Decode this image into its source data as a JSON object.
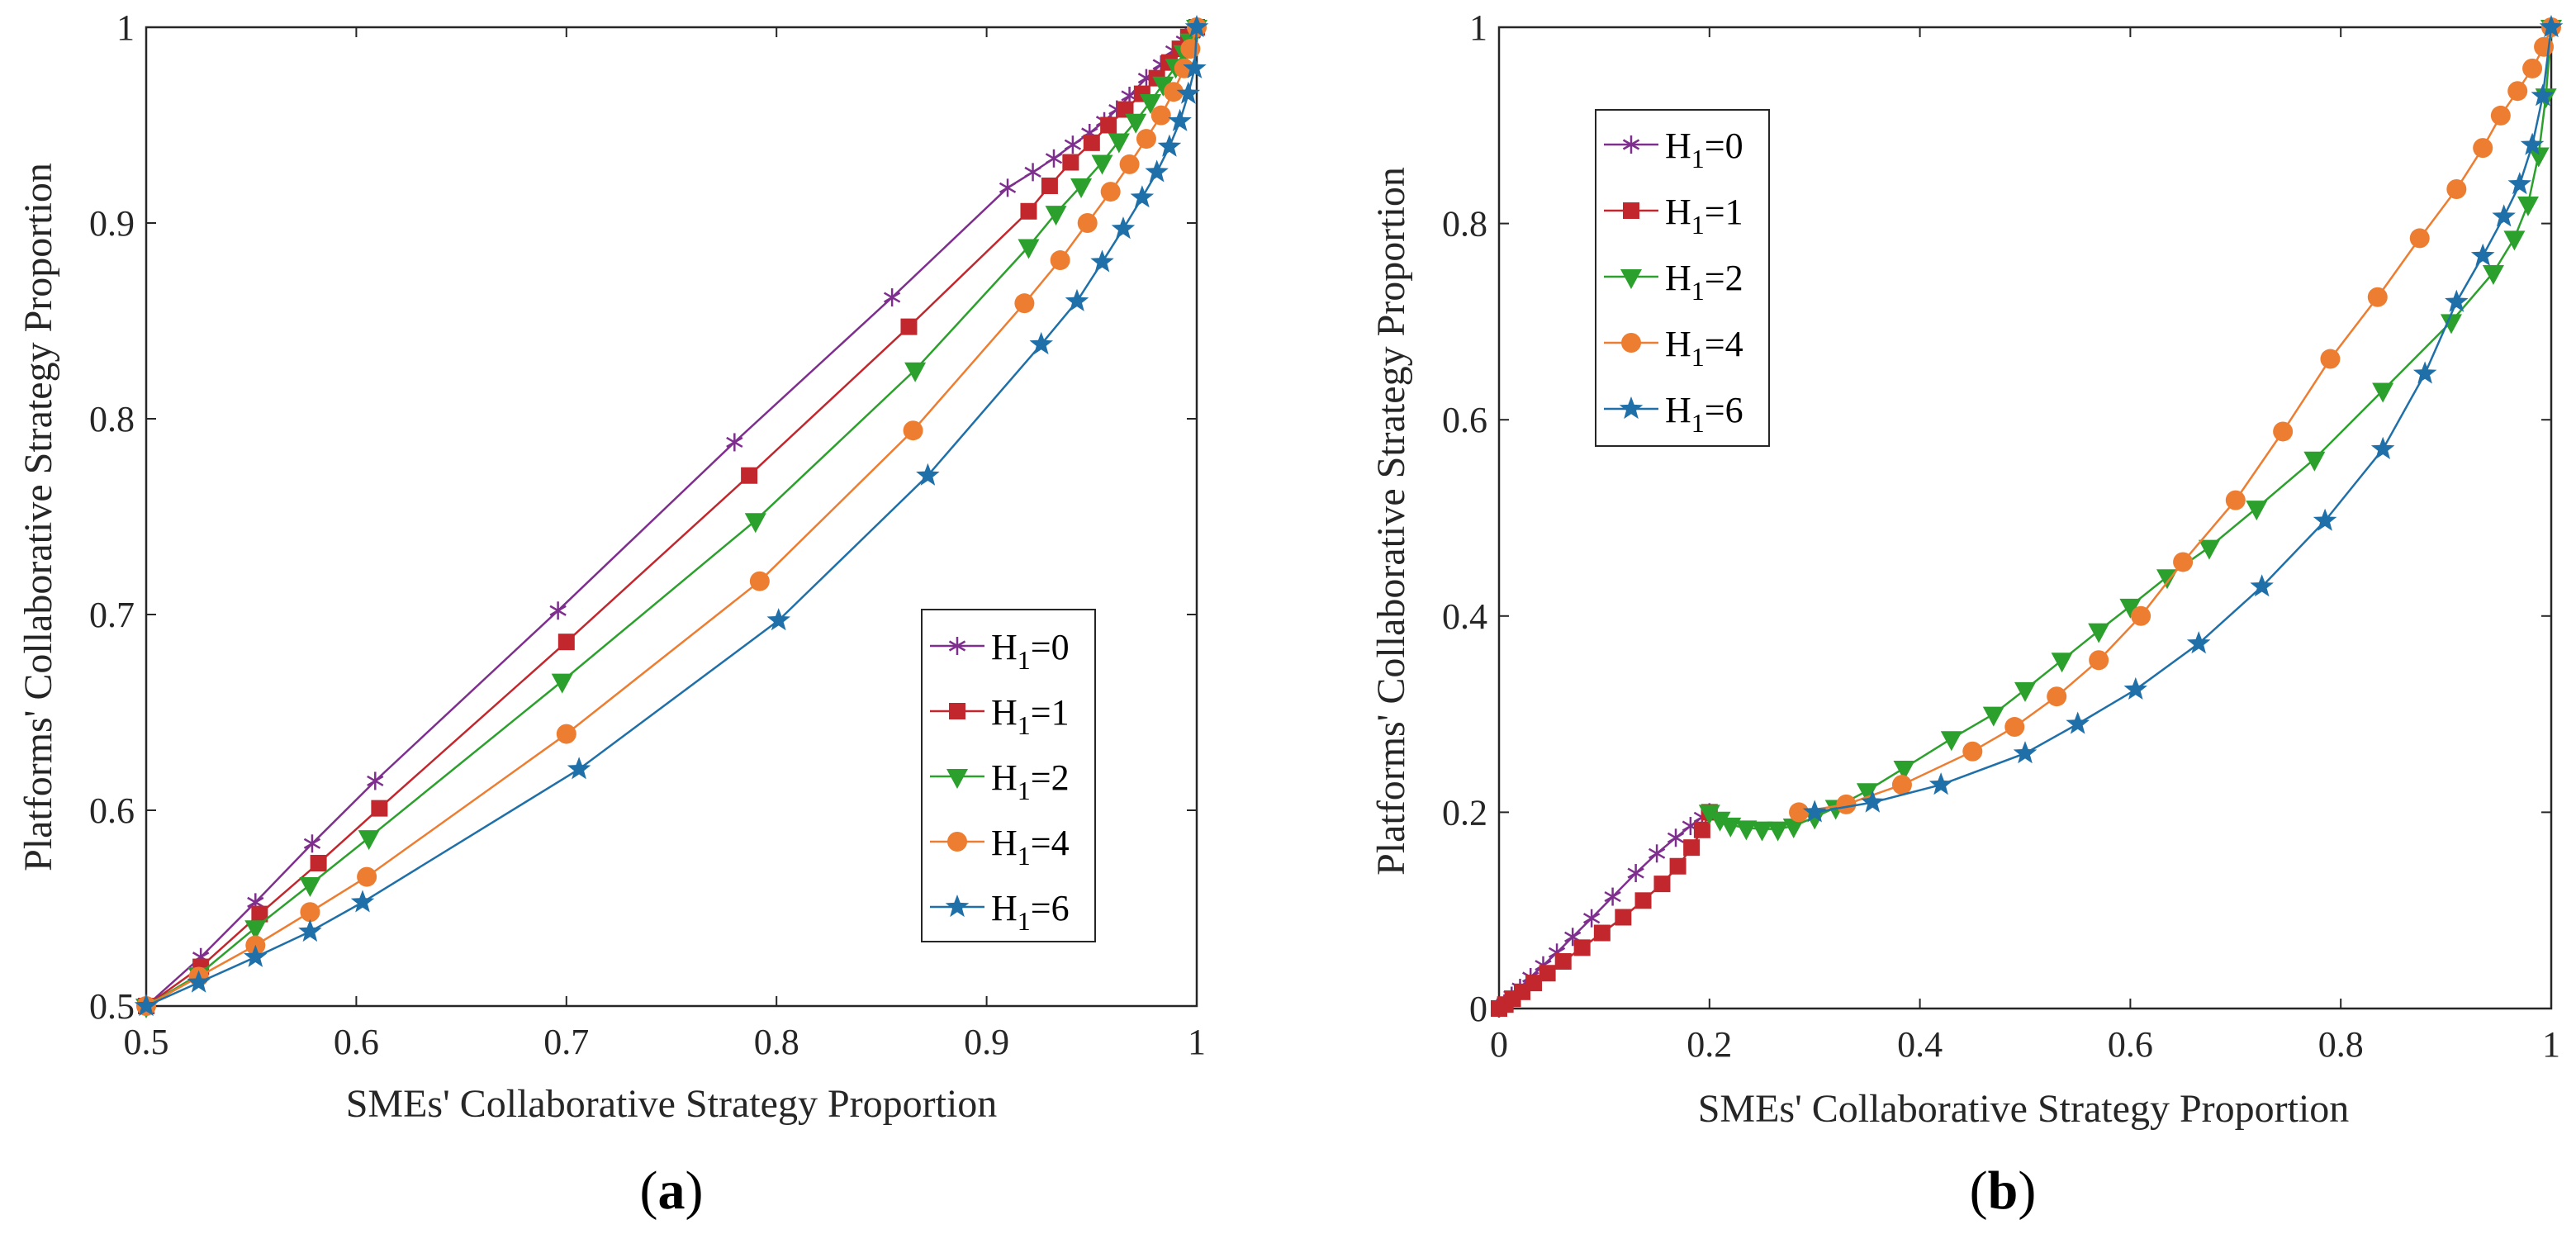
{
  "chart_data": [
    {
      "type": "line",
      "id": "a",
      "panel_label": "a",
      "xlabel": "SMEs' Collaborative Strategy Proportion",
      "ylabel": "Platforms' Collaborative Strategy Proportion",
      "xlim": [
        0.5,
        1
      ],
      "ylim": [
        0.5,
        1
      ],
      "xticks": [
        0.5,
        0.6,
        0.7,
        0.8,
        0.9,
        1
      ],
      "xticklabels": [
        "0.5",
        "0.6",
        "0.7",
        "0.8",
        "0.9",
        "1"
      ],
      "yticks": [
        0.5,
        0.6,
        0.7,
        0.8,
        0.9,
        1
      ],
      "yticklabels": [
        "0.5",
        "0.6",
        "0.7",
        "0.8",
        "0.9",
        "1"
      ],
      "legend_position": "lower-right",
      "series": [
        {
          "name": "H1=0",
          "label_main": "H",
          "label_sub": "1",
          "label_rest": "=0",
          "color": "#7e2f8e",
          "marker": "asterisk",
          "x": [
            0.5,
            0.526,
            0.552,
            0.579,
            0.609,
            0.696,
            0.78,
            0.855,
            0.91,
            0.922,
            0.932,
            0.941,
            0.949,
            0.956,
            0.962,
            0.968,
            0.976,
            0.983,
            0.989,
            0.994,
            0.998,
            1.0
          ],
          "y": [
            0.5,
            0.525,
            0.553,
            0.583,
            0.615,
            0.702,
            0.788,
            0.862,
            0.918,
            0.926,
            0.933,
            0.94,
            0.946,
            0.952,
            0.958,
            0.965,
            0.974,
            0.981,
            0.988,
            0.993,
            0.997,
            1.0
          ]
        },
        {
          "name": "H1=1",
          "label_main": "H",
          "label_sub": "1",
          "label_rest": "=1",
          "color": "#c1272d",
          "marker": "square",
          "x": [
            0.5,
            0.526,
            0.554,
            0.582,
            0.611,
            0.7,
            0.787,
            0.863,
            0.92,
            0.93,
            0.94,
            0.95,
            0.958,
            0.966,
            0.974,
            0.981,
            0.987,
            0.992,
            0.996,
            1.0
          ],
          "y": [
            0.5,
            0.52,
            0.547,
            0.573,
            0.601,
            0.686,
            0.771,
            0.847,
            0.906,
            0.919,
            0.931,
            0.941,
            0.95,
            0.958,
            0.966,
            0.974,
            0.982,
            0.989,
            0.995,
            1.0
          ],
          "draw_markers": true
        },
        {
          "name": "H1=2",
          "label_main": "H",
          "label_sub": "1",
          "label_rest": "=2",
          "color": "#2ca02c",
          "marker": "triangle-down",
          "x": [
            0.5,
            0.525,
            0.552,
            0.578,
            0.606,
            0.698,
            0.79,
            0.866,
            0.92,
            0.933,
            0.945,
            0.955,
            0.963,
            0.971,
            0.978,
            0.984,
            0.99,
            0.994,
            0.997,
            1.0
          ],
          "y": [
            0.5,
            0.516,
            0.54,
            0.562,
            0.586,
            0.666,
            0.748,
            0.825,
            0.888,
            0.905,
            0.919,
            0.931,
            0.942,
            0.952,
            0.962,
            0.971,
            0.98,
            0.987,
            0.993,
            1.0
          ]
        },
        {
          "name": "H1=4",
          "label_main": "H",
          "label_sub": "1",
          "label_rest": "=4",
          "color": "#ed7d31",
          "marker": "circle",
          "x": [
            0.5,
            0.525,
            0.552,
            0.578,
            0.605,
            0.7,
            0.792,
            0.865,
            0.918,
            0.935,
            0.948,
            0.959,
            0.968,
            0.976,
            0.983,
            0.989,
            0.994,
            0.997,
            1.0
          ],
          "y": [
            0.5,
            0.515,
            0.531,
            0.548,
            0.566,
            0.639,
            0.717,
            0.794,
            0.859,
            0.881,
            0.9,
            0.916,
            0.93,
            0.943,
            0.955,
            0.967,
            0.979,
            0.989,
            1.0
          ]
        },
        {
          "name": "H1=6",
          "label_main": "H",
          "label_sub": "1",
          "label_rest": "=6",
          "color": "#1f6fa8",
          "marker": "star",
          "x": [
            0.5,
            0.525,
            0.552,
            0.578,
            0.603,
            0.706,
            0.801,
            0.872,
            0.926,
            0.943,
            0.955,
            0.965,
            0.974,
            0.981,
            0.987,
            0.992,
            0.996,
            0.999,
            1.0
          ],
          "y": [
            0.5,
            0.512,
            0.525,
            0.538,
            0.553,
            0.621,
            0.697,
            0.771,
            0.838,
            0.86,
            0.88,
            0.897,
            0.913,
            0.926,
            0.939,
            0.952,
            0.966,
            0.979,
            1.0
          ]
        }
      ]
    },
    {
      "type": "line",
      "id": "b",
      "panel_label": "b",
      "xlabel": "SMEs' Collaborative Strategy Proportion",
      "ylabel": "Platforms' Collaborative Strategy Proportion",
      "xlim": [
        0,
        1
      ],
      "ylim": [
        0,
        1
      ],
      "xticks": [
        0,
        0.2,
        0.4,
        0.6,
        0.8,
        1
      ],
      "xticklabels": [
        "0",
        "0.2",
        "0.4",
        "0.6",
        "0.8",
        "1"
      ],
      "yticks": [
        0,
        0.2,
        0.4,
        0.6,
        0.8,
        1
      ],
      "yticklabels": [
        "0",
        "0.2",
        "0.4",
        "0.6",
        "0.8",
        "1"
      ],
      "legend_position": "upper-left",
      "series": [
        {
          "name": "H1=0",
          "label_main": "H",
          "label_sub": "1",
          "label_rest": "=0",
          "color": "#7e2f8e",
          "marker": "asterisk",
          "x": [
            0,
            0.005,
            0.012,
            0.02,
            0.03,
            0.042,
            0.055,
            0.07,
            0.088,
            0.108,
            0.13,
            0.15,
            0.168,
            0.182,
            0.193,
            0.2
          ],
          "y": [
            0,
            0.005,
            0.013,
            0.021,
            0.032,
            0.044,
            0.057,
            0.073,
            0.092,
            0.114,
            0.138,
            0.158,
            0.174,
            0.186,
            0.195,
            0.2
          ]
        },
        {
          "name": "H1=1",
          "label_main": "H",
          "label_sub": "1",
          "label_rest": "=1",
          "color": "#c1272d",
          "marker": "square",
          "x": [
            0,
            0.006,
            0.013,
            0.022,
            0.033,
            0.046,
            0.061,
            0.079,
            0.098,
            0.118,
            0.137,
            0.155,
            0.17,
            0.183,
            0.193,
            0.2
          ],
          "y": [
            0,
            0.004,
            0.01,
            0.017,
            0.026,
            0.036,
            0.048,
            0.062,
            0.077,
            0.093,
            0.11,
            0.127,
            0.145,
            0.164,
            0.182,
            0.2
          ]
        },
        {
          "name": "H1=2",
          "label_main": "H",
          "label_sub": "1",
          "label_rest": "=2",
          "color": "#2ca02c",
          "marker": "triangle-down",
          "x": [
            0.2,
            0.21,
            0.22,
            0.235,
            0.25,
            0.265,
            0.28,
            0.3,
            0.32,
            0.35,
            0.385,
            0.43,
            0.47,
            0.5,
            0.535,
            0.57,
            0.6,
            0.635,
            0.675,
            0.72,
            0.775,
            0.84,
            0.905,
            0.945,
            0.965,
            0.978,
            0.988,
            0.995,
            1.0
          ],
          "y": [
            0.2,
            0.193,
            0.187,
            0.184,
            0.183,
            0.183,
            0.186,
            0.195,
            0.205,
            0.222,
            0.245,
            0.275,
            0.3,
            0.325,
            0.355,
            0.385,
            0.41,
            0.44,
            0.47,
            0.51,
            0.56,
            0.63,
            0.7,
            0.75,
            0.785,
            0.82,
            0.87,
            0.93,
            1.0
          ]
        },
        {
          "name": "H1=4",
          "label_main": "H",
          "label_sub": "1",
          "label_rest": "=4",
          "color": "#ed7d31",
          "marker": "circle",
          "x": [
            0.285,
            0.33,
            0.383,
            0.45,
            0.49,
            0.53,
            0.57,
            0.61,
            0.65,
            0.7,
            0.745,
            0.79,
            0.835,
            0.875,
            0.91,
            0.935,
            0.952,
            0.968,
            0.982,
            0.993,
            1.0
          ],
          "y": [
            0.2,
            0.208,
            0.228,
            0.262,
            0.287,
            0.318,
            0.355,
            0.4,
            0.455,
            0.518,
            0.588,
            0.662,
            0.725,
            0.785,
            0.835,
            0.877,
            0.91,
            0.935,
            0.958,
            0.98,
            1.0
          ]
        },
        {
          "name": "H1=6",
          "label_main": "H",
          "label_sub": "1",
          "label_rest": "=6",
          "color": "#1f6fa8",
          "marker": "star",
          "x": [
            0.3,
            0.355,
            0.42,
            0.5,
            0.55,
            0.605,
            0.665,
            0.725,
            0.785,
            0.84,
            0.88,
            0.91,
            0.935,
            0.955,
            0.97,
            0.982,
            0.992,
            1.0
          ],
          "y": [
            0.2,
            0.21,
            0.228,
            0.26,
            0.29,
            0.325,
            0.372,
            0.43,
            0.497,
            0.57,
            0.647,
            0.72,
            0.767,
            0.807,
            0.84,
            0.88,
            0.93,
            1.0
          ]
        }
      ]
    }
  ]
}
